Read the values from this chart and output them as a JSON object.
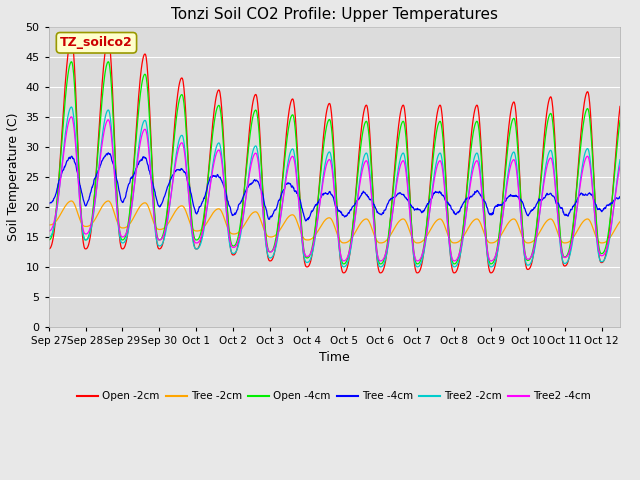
{
  "title": "Tonzi Soil CO2 Profile: Upper Temperatures",
  "xlabel": "Time",
  "ylabel": "Soil Temperature (C)",
  "ylim": [
    0,
    50
  ],
  "yticks": [
    0,
    5,
    10,
    15,
    20,
    25,
    30,
    35,
    40,
    45,
    50
  ],
  "fig_bg_color": "#e8e8e8",
  "plot_bg_color": "#dcdcdc",
  "legend_label": "TZ_soilco2",
  "series": [
    {
      "label": "Open -2cm",
      "color": "#ff0000"
    },
    {
      "label": "Tree -2cm",
      "color": "#ffa500"
    },
    {
      "label": "Open -4cm",
      "color": "#00ee00"
    },
    {
      "label": "Tree -4cm",
      "color": "#0000ff"
    },
    {
      "label": "Tree2 -2cm",
      "color": "#00cccc"
    },
    {
      "label": "Tree2 -4cm",
      "color": "#ff00ff"
    }
  ],
  "xticklabels": [
    "Sep 27",
    "Sep 28",
    "Sep 29",
    "Sep 30",
    "Oct 1",
    "Oct 2",
    "Oct 3",
    "Oct 4",
    "Oct 5",
    "Oct 6",
    "Oct 7",
    "Oct 8",
    "Oct 9",
    "Oct 10",
    "Oct 11",
    "Oct 12"
  ],
  "n_days": 15.5,
  "samples_per_day": 96
}
